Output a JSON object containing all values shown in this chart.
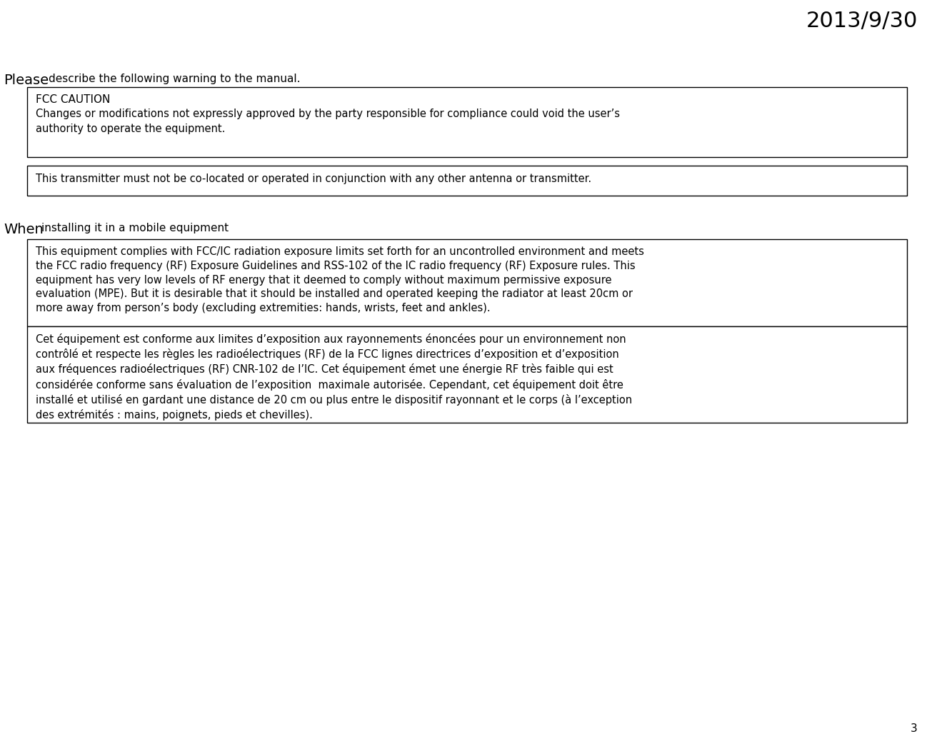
{
  "background_color": "#ffffff",
  "date_text": "2013/9/30",
  "page_number": "3",
  "box1_title": "FCC CAUTION",
  "box1_text": "Changes or modifications not expressly approved by the party responsible for compliance could void the user’s\nauthority to operate the equipment.",
  "box2_text": "This transmitter must not be co-located or operated in conjunction with any other antenna or transmitter.",
  "box3_text": "This equipment complies with FCC/IC radiation exposure limits set forth for an uncontrolled environment and meets\nthe FCC radio frequency (RF) Exposure Guidelines and RSS-102 of the IC radio frequency (RF) Exposure rules. This\nequipment has very low levels of RF energy that it deemed to comply without maximum permissive exposure\nevaluation (MPE). But it is desirable that it should be installed and operated keeping the radiator at least 20cm or\nmore away from person’s body (excluding extremities: hands, wrists, feet and ankles).",
  "box4_text": "Cet équipement est conforme aux limites d’exposition aux rayonnements énoncées pour un environnement non\ncontrôlé et respecte les règles les radioélectriques (RF) de la FCC lignes directrices d’exposition et d’exposition\naux fréquences radioélectriques (RF) CNR-102 de l’IC. Cet équipement émet une énergie RF très faible qui est\nconsidérée conforme sans évaluation de l’exposition  maximale autorisée. Cependant, cet équipement doit être\ninstallé et utilisé en gardant une distance de 20 cm ou plus entre le dispositif rayonnant et le corps (à l’exception\ndes extrémités : mains, poignets, pieds et chevilles).",
  "font_color": "#000000",
  "box_edge_color": "#000000",
  "box_fill_color": "#ffffff"
}
